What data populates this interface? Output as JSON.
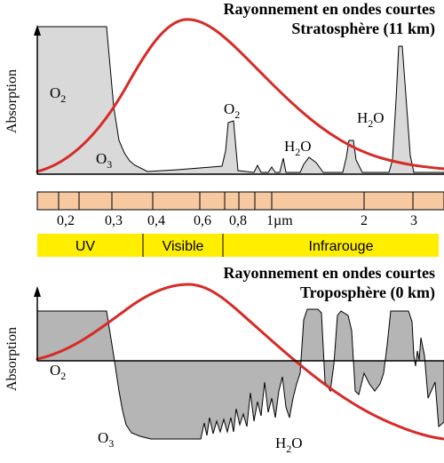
{
  "top_panel": {
    "title_line1": "Rayonnement en ondes courtes",
    "title_line2": "Stratosphère (11 km)",
    "y_axis_label": "Absorption",
    "labels": {
      "o2_left": {
        "main": "O",
        "sub": "2"
      },
      "o3": {
        "main": "O",
        "sub": "3"
      },
      "o2_peak": {
        "main": "O",
        "sub": "2"
      },
      "h2o_mid": {
        "main": "H",
        "sub": "2",
        "tail": "O"
      },
      "h2o_right": {
        "main": "H",
        "sub": "2",
        "tail": "O"
      }
    }
  },
  "scale": {
    "ticks": [
      "0,2",
      "0,3",
      "0,4",
      "0,6",
      "0,8",
      "1µm",
      "2",
      "3"
    ],
    "bands": [
      "UV",
      "Visible",
      "Infrarouge"
    ]
  },
  "bottom_panel": {
    "title_line1": "Rayonnement en ondes courtes",
    "title_line2": "Troposphère (0 km)",
    "y_axis_label": "Absorption",
    "labels": {
      "o2_left": {
        "main": "O",
        "sub": "2"
      },
      "o3": {
        "main": "O",
        "sub": "3"
      },
      "h2o": {
        "main": "H",
        "sub": "2",
        "tail": "O"
      }
    }
  },
  "colors": {
    "absorption_fill_top": "#d9d9d9",
    "absorption_fill_bottom": "#b5b5b5",
    "solar_curve": "#d62b27",
    "scale_bar": "#f6c9a0",
    "band_bar": "#ffee00",
    "axis": "#000000"
  }
}
